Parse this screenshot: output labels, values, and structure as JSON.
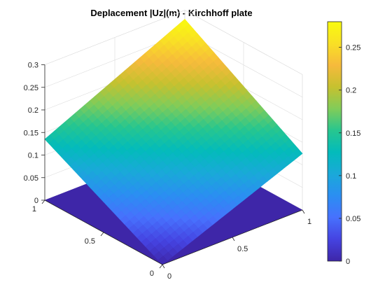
{
  "figure": {
    "title": "Deplacement |Uz|(m) - Kirchhoff plate",
    "colormap": [
      "#3e26a8",
      "#4543e1",
      "#4771fd",
      "#2b8ef2",
      "#1aa9d9",
      "#03bbbb",
      "#27c68f",
      "#81cc59",
      "#c6c12f",
      "#f6ba3c",
      "#f9e025",
      "#f9fb0e"
    ]
  },
  "chart_data": {
    "type": "surface",
    "title": "Deplacement |Uz|(m) - Kirchhoff plate",
    "x_ticks": [
      "0",
      "0.5",
      "1"
    ],
    "y_ticks": [
      "0",
      "0.5",
      "1"
    ],
    "z_ticks": [
      "0",
      "0.05",
      "0.1",
      "0.15",
      "0.2",
      "0.25",
      "0.3"
    ],
    "xlim": [
      0,
      1
    ],
    "ylim": [
      0,
      1
    ],
    "zlim": [
      0,
      0.3
    ],
    "grid": true,
    "surface_corners": {
      "x0_y0": 0,
      "x1_y0": 0.125,
      "x0_y1": 0.135,
      "x1_y1": 0.28
    },
    "base_plane_z": 0,
    "colorbar": {
      "range": [
        0,
        0.28
      ],
      "ticks": [
        "0",
        "0.05",
        "0.1",
        "0.15",
        "0.2",
        "0.25"
      ],
      "placement": "right"
    }
  }
}
